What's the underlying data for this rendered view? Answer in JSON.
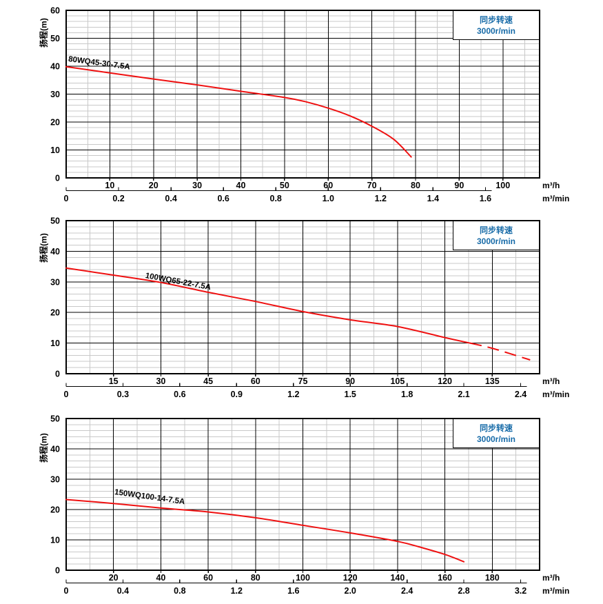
{
  "page": {
    "background": "#ffffff"
  },
  "colors": {
    "curve_red": "#ef1010",
    "annotation_blue": "#176ba8",
    "minor_grid": "#c8c8c8",
    "major_grid": "#000000",
    "frame": "#000000",
    "text": "#000000"
  },
  "chart_data": [
    {
      "type": "line",
      "title": "80WQ45-30-7.5A",
      "ylabel": "扬程(m)",
      "xlabel_primary": "m³/h",
      "xlabel_secondary": "m³/min",
      "annotation": {
        "line1": "同步转速",
        "line2": "3000r/min"
      },
      "legend": "none",
      "grid": "major+minor",
      "x_axis_m3h": {
        "min": 0,
        "max": 108.4,
        "major_step": 10,
        "minor_step": 5,
        "tick_labels": [
          10,
          20,
          30,
          40,
          50,
          60,
          70,
          80,
          90,
          100
        ]
      },
      "x_axis_m3min": {
        "m3h_per_unit": 60,
        "tick_labels": [
          "0",
          "0.2",
          "0.4",
          "0.6",
          "0.8",
          "1.0",
          "1.2",
          "1.4",
          "1.6"
        ]
      },
      "y_axis": {
        "min": 0,
        "max": 60,
        "major_step": 10,
        "minor_step": 2,
        "tick_labels": [
          0,
          10,
          20,
          30,
          40,
          50,
          60
        ]
      },
      "series": [
        {
          "name": "80WQ45-30-7.5A",
          "points_m3h_head": [
            [
              0,
              39.8
            ],
            [
              10,
              37.6
            ],
            [
              20,
              35.4
            ],
            [
              30,
              33.3
            ],
            [
              40,
              31.0
            ],
            [
              50,
              28.8
            ],
            [
              55,
              27.2
            ],
            [
              60,
              25.0
            ],
            [
              65,
              22.2
            ],
            [
              70,
              18.5
            ],
            [
              75,
              13.8
            ],
            [
              79,
              7.5
            ]
          ],
          "dashed_from_m3h": null
        }
      ]
    },
    {
      "type": "line",
      "title": "100WQ65-22-7.5A",
      "ylabel": "扬程(m)",
      "xlabel_primary": "m³/h",
      "xlabel_secondary": "m³/min",
      "annotation": {
        "line1": "同步转速",
        "line2": "3000r/min"
      },
      "legend": "none",
      "grid": "major+minor",
      "x_axis_m3h": {
        "min": 0,
        "max": 150,
        "major_step": 15,
        "minor_step": 7.5,
        "tick_labels": [
          15,
          30,
          45,
          60,
          75,
          90,
          105,
          120,
          135
        ]
      },
      "x_axis_m3min": {
        "m3h_per_unit": 60,
        "tick_labels": [
          "0",
          "0.3",
          "0.6",
          "0.9",
          "1.2",
          "1.5",
          "1.8",
          "2.1",
          "2.4"
        ]
      },
      "y_axis": {
        "min": 0,
        "max": 50,
        "major_step": 10,
        "minor_step": 2,
        "tick_labels": [
          0,
          10,
          20,
          30,
          40,
          50
        ]
      },
      "series": [
        {
          "name": "100WQ65-22-7.5A",
          "points_m3h_head": [
            [
              0,
              34.5
            ],
            [
              15,
              32.2
            ],
            [
              30,
              29.8
            ],
            [
              45,
              26.6
            ],
            [
              60,
              23.6
            ],
            [
              75,
              20.3
            ],
            [
              90,
              17.6
            ],
            [
              105,
              15.4
            ],
            [
              120,
              11.8
            ],
            [
              128,
              10.0
            ],
            [
              135,
              8.3
            ],
            [
              147,
              4.5
            ]
          ],
          "dashed_from_m3h": 128
        }
      ]
    },
    {
      "type": "line",
      "title": "150WQ100-14-7.5A",
      "ylabel": "扬程(m)",
      "xlabel_primary": "m³/h",
      "xlabel_secondary": "m³/min",
      "annotation": {
        "line1": "同步转速",
        "line2": "3000r/min"
      },
      "legend": "none",
      "grid": "major+minor",
      "x_axis_m3h": {
        "min": 0,
        "max": 200,
        "major_step": 20,
        "minor_step": 10,
        "tick_labels": [
          20,
          40,
          60,
          80,
          100,
          120,
          140,
          160,
          180
        ]
      },
      "x_axis_m3min": {
        "m3h_per_unit": 60,
        "tick_labels": [
          "0",
          "0.4",
          "0.8",
          "1.2",
          "1.6",
          "2.0",
          "2.4",
          "2.8",
          "3.2"
        ]
      },
      "y_axis": {
        "min": 0,
        "max": 50,
        "major_step": 10,
        "minor_step": 2,
        "tick_labels": [
          0,
          10,
          20,
          30,
          40,
          50
        ]
      },
      "series": [
        {
          "name": "150WQ100-14-7.5A",
          "points_m3h_head": [
            [
              0,
              23.3
            ],
            [
              20,
              22.0
            ],
            [
              40,
              20.5
            ],
            [
              60,
              19.2
            ],
            [
              80,
              17.3
            ],
            [
              100,
              14.8
            ],
            [
              120,
              12.3
            ],
            [
              140,
              9.5
            ],
            [
              150,
              7.5
            ],
            [
              160,
              5.2
            ],
            [
              168,
              2.8
            ]
          ],
          "dashed_from_m3h": null
        }
      ]
    }
  ]
}
